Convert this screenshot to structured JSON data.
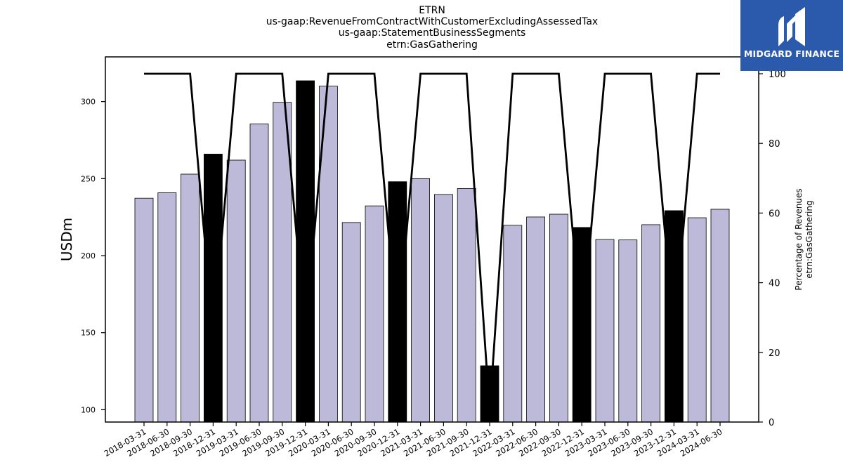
{
  "chart_data": {
    "type": "bar",
    "title_lines": [
      "ETRN",
      "us-gaap:RevenueFromContractWithCustomerExcludingAssessedTax",
      "us-gaap:StatementBusinessSegments",
      "etrn:GasGathering"
    ],
    "ylabel": "USDm",
    "y2label_lines": [
      "Percentage of Revenues",
      "etrn:GasGathering"
    ],
    "ylim": [
      92,
      329
    ],
    "y_ticks": [
      100,
      150,
      200,
      250,
      300
    ],
    "y2lim": [
      0,
      100
    ],
    "y2_ticks": [
      0,
      20,
      40,
      60,
      80,
      100
    ],
    "categories": [
      "2018-03-31",
      "2018-06-30",
      "2018-09-30",
      "2018-12-31",
      "2019-03-31",
      "2019-06-30",
      "2019-09-30",
      "2019-12-31",
      "2020-03-31",
      "2020-06-30",
      "2020-09-30",
      "2020-12-31",
      "2021-03-31",
      "2021-06-30",
      "2021-09-30",
      "2021-12-31",
      "2022-03-31",
      "2022-06-30",
      "2022-09-30",
      "2022-12-31",
      "2023-03-31",
      "2023-06-30",
      "2023-09-30",
      "2023-12-31",
      "2024-03-31",
      "2024-06-30"
    ],
    "series": [
      {
        "type": "bar",
        "values": [
          237.3,
          240.8,
          252.9,
          265.9,
          262.0,
          285.5,
          299.5,
          313.5,
          310.0,
          221.5,
          232.3,
          248.0,
          250.0,
          239.7,
          243.6,
          128.5,
          219.7,
          225.1,
          226.9,
          218.3,
          210.5,
          210.2,
          220.1,
          229.2,
          224.6,
          230.1
        ],
        "highlight": [
          false,
          false,
          false,
          true,
          false,
          false,
          false,
          true,
          false,
          false,
          false,
          true,
          false,
          false,
          false,
          true,
          false,
          false,
          false,
          true,
          false,
          false,
          false,
          true,
          false,
          false
        ]
      },
      {
        "type": "line",
        "axis": "secondary",
        "values": [
          100,
          100,
          100,
          25,
          100,
          100,
          100,
          25,
          100,
          100,
          100,
          25,
          100,
          100,
          100,
          3,
          100,
          100,
          100,
          25,
          100,
          100,
          100,
          25,
          100,
          100
        ]
      }
    ],
    "colors": {
      "bar": "#bcb9d9",
      "bar_highlight": "#000000",
      "line": "#000000"
    },
    "grid": false
  },
  "logo": {
    "text": "MIDGARD FINANCE",
    "background": "#2b5aad"
  }
}
